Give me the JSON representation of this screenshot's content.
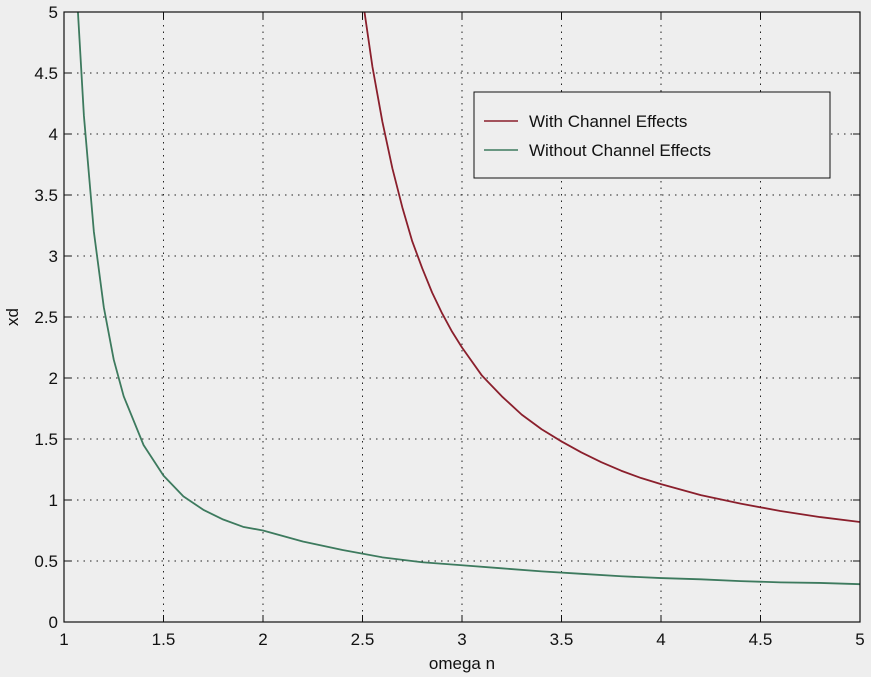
{
  "chart_data": {
    "type": "line",
    "xlabel": "omega n",
    "ylabel": "xd",
    "xlim": [
      1,
      5
    ],
    "ylim": [
      0,
      5
    ],
    "xticks": [
      "1",
      "1.5",
      "2",
      "2.5",
      "3",
      "3.5",
      "4",
      "4.5",
      "5"
    ],
    "yticks": [
      "0",
      "0.5",
      "1",
      "1.5",
      "2",
      "2.5",
      "3",
      "3.5",
      "4",
      "4.5",
      "5"
    ],
    "grid": true,
    "grid_style": "dotted",
    "legend_position": "top-right",
    "background": "#eeeeee",
    "series": [
      {
        "name": "With Channel Effects",
        "color": "#8a1f2c",
        "x": [
          2.51,
          2.55,
          2.6,
          2.65,
          2.7,
          2.75,
          2.8,
          2.85,
          2.9,
          2.95,
          3.0,
          3.1,
          3.2,
          3.3,
          3.4,
          3.5,
          3.6,
          3.7,
          3.8,
          3.9,
          4.0,
          4.2,
          4.4,
          4.6,
          4.8,
          5.0
        ],
        "y": [
          5.0,
          4.55,
          4.1,
          3.72,
          3.4,
          3.12,
          2.9,
          2.7,
          2.53,
          2.38,
          2.25,
          2.02,
          1.85,
          1.7,
          1.58,
          1.48,
          1.39,
          1.31,
          1.24,
          1.18,
          1.13,
          1.04,
          0.97,
          0.91,
          0.86,
          0.82
        ]
      },
      {
        "name": "Without Channel Effects",
        "color": "#3d7a5e",
        "x": [
          1.07,
          1.1,
          1.15,
          1.2,
          1.25,
          1.3,
          1.4,
          1.5,
          1.6,
          1.7,
          1.8,
          1.9,
          2.0,
          2.2,
          2.4,
          2.6,
          2.8,
          3.0,
          3.2,
          3.4,
          3.6,
          3.8,
          4.0,
          4.2,
          4.4,
          4.6,
          4.8,
          5.0
        ],
        "y": [
          5.0,
          4.15,
          3.2,
          2.58,
          2.15,
          1.85,
          1.45,
          1.2,
          1.03,
          0.92,
          0.84,
          0.78,
          0.75,
          0.66,
          0.59,
          0.53,
          0.49,
          0.465,
          0.44,
          0.415,
          0.395,
          0.375,
          0.36,
          0.35,
          0.335,
          0.325,
          0.32,
          0.31
        ]
      }
    ]
  }
}
